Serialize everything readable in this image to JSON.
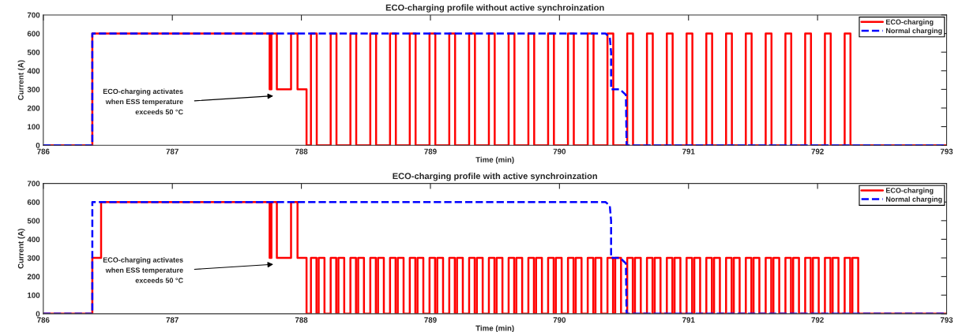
{
  "chart_data": [
    {
      "type": "line",
      "title": "ECO-charging profile without active synchroinzation",
      "xlabel": "Time (min)",
      "ylabel": "Current (A)",
      "xlim": [
        786,
        793
      ],
      "xticks": [
        786,
        787,
        788,
        789,
        790,
        791,
        792,
        793
      ],
      "ylim": [
        0,
        700
      ],
      "yticks": [
        0,
        100,
        200,
        300,
        400,
        500,
        600,
        700
      ],
      "grid": false,
      "legend": "top right",
      "annotations": [
        "ECO-charging activates\nwhen ESS temperature\nexceeds 50 °C"
      ],
      "series": [
        {
          "name": "ECO-charging",
          "color": "#ff0000",
          "line_style": "solid",
          "x": [
            786,
            786.38,
            786.38,
            787.754,
            787.754,
            787.768,
            787.768,
            787.81,
            787.81,
            787.92,
            787.92,
            787.97,
            787.97,
            788.04,
            788.04,
            788.074,
            788.074,
            788.119,
            788.119,
            788.227,
            788.227,
            788.272,
            788.272,
            788.38,
            788.38,
            788.425,
            788.425,
            788.534,
            788.534,
            788.579,
            788.579,
            788.687,
            788.687,
            788.732,
            788.732,
            788.84,
            788.84,
            788.885,
            788.885,
            788.993,
            788.993,
            789.038,
            789.038,
            789.146,
            789.146,
            789.191,
            789.191,
            789.3,
            789.3,
            789.345,
            789.345,
            789.453,
            789.453,
            789.498,
            789.498,
            789.606,
            789.606,
            789.651,
            789.651,
            789.759,
            789.759,
            789.804,
            789.804,
            789.912,
            789.912,
            789.957,
            789.957,
            790.066,
            790.066,
            790.111,
            790.111,
            790.219,
            790.219,
            790.264,
            790.264,
            790.372,
            790.372,
            790.417,
            790.417,
            790.525,
            790.525,
            790.57,
            790.57,
            790.678,
            790.678,
            790.723,
            790.723,
            790.832,
            790.832,
            790.877,
            790.877,
            790.985,
            790.985,
            791.03,
            791.03,
            791.138,
            791.138,
            791.183,
            791.183,
            791.291,
            791.291,
            791.336,
            791.336,
            791.444,
            791.444,
            791.489,
            791.489,
            791.598,
            791.598,
            791.643,
            791.643,
            791.751,
            791.751,
            791.796,
            791.796,
            791.904,
            791.904,
            791.949,
            791.949,
            792.057,
            792.057,
            792.102,
            792.102,
            792.21,
            792.21,
            792.255,
            792.255,
            793
          ],
          "values": [
            0,
            0,
            600,
            600,
            300,
            300,
            600,
            600,
            300,
            300,
            600,
            600,
            300,
            300,
            0,
            0,
            600,
            600,
            0,
            0,
            600,
            600,
            0,
            0,
            600,
            600,
            0,
            0,
            600,
            600,
            0,
            0,
            600,
            600,
            0,
            0,
            600,
            600,
            0,
            0,
            600,
            600,
            0,
            0,
            600,
            600,
            0,
            0,
            600,
            600,
            0,
            0,
            600,
            600,
            0,
            0,
            600,
            600,
            0,
            0,
            600,
            600,
            0,
            0,
            600,
            600,
            0,
            0,
            600,
            600,
            0,
            0,
            600,
            600,
            0,
            0,
            600,
            600,
            0,
            0,
            600,
            600,
            0,
            0,
            600,
            600,
            0,
            0,
            600,
            600,
            0,
            0,
            600,
            600,
            0,
            0,
            600,
            600,
            0,
            0,
            600,
            600,
            0,
            0,
            600,
            600,
            0,
            0,
            600,
            600,
            0,
            0,
            600,
            600,
            0,
            0,
            600,
            600,
            0,
            0,
            600,
            600,
            0,
            0,
            600,
            600,
            0,
            0
          ]
        },
        {
          "name": "Normal charging",
          "color": "#0000ff",
          "line_style": "dashed",
          "x": [
            786,
            786.38,
            786.38,
            790.357,
            790.39,
            790.4,
            790.4,
            790.47,
            790.515,
            790.52,
            793
          ],
          "values": [
            0,
            0,
            600,
            600,
            580,
            500,
            300,
            300,
            270,
            0,
            0
          ]
        }
      ]
    },
    {
      "type": "line",
      "title": "ECO-charging profile with active synchroinzation",
      "xlabel": "Time (min)",
      "ylabel": "Current (A)",
      "xlim": [
        786,
        793
      ],
      "xticks": [
        786,
        787,
        788,
        789,
        790,
        791,
        792,
        793
      ],
      "ylim": [
        0,
        700
      ],
      "yticks": [
        0,
        100,
        200,
        300,
        400,
        500,
        600,
        700
      ],
      "grid": false,
      "legend": "top right",
      "annotations": [
        "ECO-charging activates\nwhen ESS temperature\nexceeds 50 °C"
      ],
      "series": [
        {
          "name": "ECO-charging",
          "color": "#ff0000",
          "line_style": "solid",
          "x": [
            786,
            786.38,
            786.38,
            786.448,
            786.448,
            787.754,
            787.754,
            787.768,
            787.768,
            787.81,
            787.81,
            787.92,
            787.92,
            787.97,
            787.97,
            788.04,
            788.04,
            788.074,
            788.074,
            788.117,
            788.117,
            788.134,
            788.134,
            788.179,
            788.179,
            788.227,
            788.227,
            788.27,
            788.27,
            788.287,
            788.287,
            788.332,
            788.332,
            788.38,
            788.38,
            788.423,
            788.423,
            788.44,
            788.44,
            788.485,
            788.485,
            788.534,
            788.534,
            788.577,
            788.577,
            788.594,
            788.594,
            788.639,
            788.639,
            788.687,
            788.687,
            788.73,
            788.73,
            788.747,
            788.747,
            788.792,
            788.792,
            788.84,
            788.84,
            788.883,
            788.883,
            788.9,
            788.9,
            788.945,
            788.945,
            788.993,
            788.993,
            789.036,
            789.036,
            789.053,
            789.053,
            789.098,
            789.098,
            789.146,
            789.146,
            789.189,
            789.189,
            789.206,
            789.206,
            789.251,
            789.251,
            789.3,
            789.3,
            789.343,
            789.343,
            789.36,
            789.36,
            789.405,
            789.405,
            789.453,
            789.453,
            789.496,
            789.496,
            789.513,
            789.513,
            789.558,
            789.558,
            789.606,
            789.606,
            789.649,
            789.649,
            789.666,
            789.666,
            789.711,
            789.711,
            789.759,
            789.759,
            789.802,
            789.802,
            789.819,
            789.819,
            789.864,
            789.864,
            789.912,
            789.912,
            789.955,
            789.955,
            789.972,
            789.972,
            790.017,
            790.017,
            790.066,
            790.066,
            790.109,
            790.109,
            790.126,
            790.126,
            790.171,
            790.171,
            790.219,
            790.219,
            790.262,
            790.262,
            790.279,
            790.279,
            790.324,
            790.324,
            790.372,
            790.372,
            790.415,
            790.415,
            790.432,
            790.432,
            790.477,
            790.477,
            790.525,
            790.525,
            790.568,
            790.568,
            790.585,
            790.585,
            790.63,
            790.63,
            790.678,
            790.678,
            790.721,
            790.721,
            790.738,
            790.738,
            790.783,
            790.783,
            790.832,
            790.832,
            790.875,
            790.875,
            790.892,
            790.892,
            790.937,
            790.937,
            790.985,
            790.985,
            791.028,
            791.028,
            791.045,
            791.045,
            791.09,
            791.09,
            791.138,
            791.138,
            791.181,
            791.181,
            791.198,
            791.198,
            791.243,
            791.243,
            791.291,
            791.291,
            791.334,
            791.334,
            791.351,
            791.351,
            791.396,
            791.396,
            791.444,
            791.444,
            791.487,
            791.487,
            791.504,
            791.504,
            791.549,
            791.549,
            791.598,
            791.598,
            791.641,
            791.641,
            791.658,
            791.658,
            791.703,
            791.703,
            791.751,
            791.751,
            791.794,
            791.794,
            791.811,
            791.811,
            791.856,
            791.856,
            791.904,
            791.904,
            791.947,
            791.947,
            791.964,
            791.964,
            792.009,
            792.009,
            792.057,
            792.057,
            792.1,
            792.1,
            792.117,
            792.117,
            792.162,
            792.162,
            792.21,
            792.21,
            792.253,
            792.253,
            792.27,
            792.27,
            792.315,
            792.315,
            793
          ],
          "values": [
            0,
            0,
            300,
            300,
            600,
            600,
            300,
            300,
            600,
            600,
            300,
            300,
            600,
            600,
            300,
            300,
            0,
            0,
            300,
            300,
            0,
            0,
            300,
            300,
            0,
            0,
            300,
            300,
            0,
            0,
            300,
            300,
            0,
            0,
            300,
            300,
            0,
            0,
            300,
            300,
            0,
            0,
            300,
            300,
            0,
            0,
            300,
            300,
            0,
            0,
            300,
            300,
            0,
            0,
            300,
            300,
            0,
            0,
            300,
            300,
            0,
            0,
            300,
            300,
            0,
            0,
            300,
            300,
            0,
            0,
            300,
            300,
            0,
            0,
            300,
            300,
            0,
            0,
            300,
            300,
            0,
            0,
            300,
            300,
            0,
            0,
            300,
            300,
            0,
            0,
            300,
            300,
            0,
            0,
            300,
            300,
            0,
            0,
            300,
            300,
            0,
            0,
            300,
            300,
            0,
            0,
            300,
            300,
            0,
            0,
            300,
            300,
            0,
            0,
            300,
            300,
            0,
            0,
            300,
            300,
            0,
            0,
            300,
            300,
            0,
            0,
            300,
            300,
            0,
            0,
            300,
            300,
            0,
            0,
            300,
            300,
            0,
            0,
            300,
            300,
            0,
            0,
            300,
            300,
            0,
            0,
            300,
            300,
            0,
            0,
            300,
            300,
            0,
            0,
            300,
            300,
            0,
            0,
            300,
            300,
            0,
            0,
            300,
            300,
            0,
            0,
            300,
            300,
            0,
            0,
            300,
            300,
            0,
            0,
            300,
            300,
            0,
            0,
            300,
            300,
            0,
            0,
            300,
            300,
            0,
            0,
            300,
            300,
            0,
            0,
            300,
            300,
            0,
            0,
            300,
            300,
            0,
            0,
            300,
            300,
            0,
            0,
            300,
            300,
            0,
            0,
            300,
            300,
            0,
            0,
            300,
            300,
            0,
            0,
            300,
            300,
            0,
            0,
            300,
            300,
            0,
            0,
            300,
            300,
            0,
            0,
            300,
            300,
            0,
            0,
            300,
            300,
            0,
            0,
            300,
            300,
            0,
            0,
            300,
            300,
            0,
            0
          ]
        },
        {
          "name": "Normal charging",
          "color": "#0000ff",
          "line_style": "dashed",
          "x": [
            786,
            786.38,
            786.38,
            790.357,
            790.39,
            790.4,
            790.4,
            790.47,
            790.515,
            790.52,
            793
          ],
          "values": [
            0,
            0,
            600,
            600,
            580,
            500,
            300,
            300,
            270,
            0,
            0
          ]
        }
      ]
    }
  ]
}
